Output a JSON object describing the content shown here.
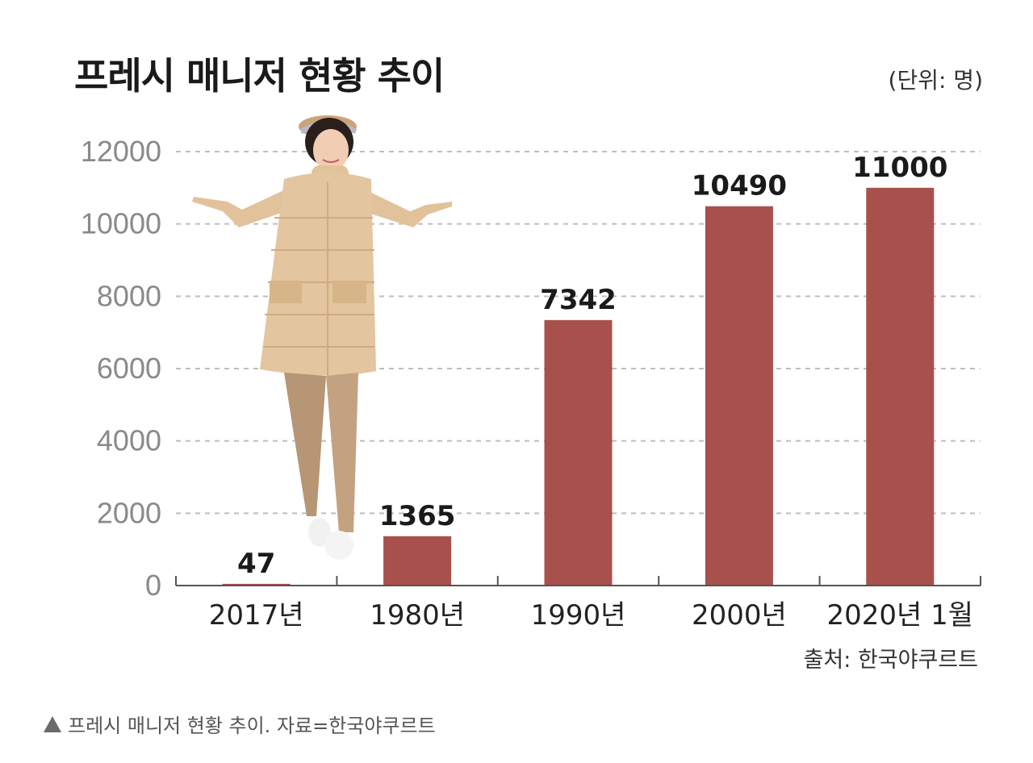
{
  "title": "프레시 매니저 현황 추이",
  "unit": "(단위: 명)",
  "source": "출처: 한국야쿠르트",
  "caption": "프레시 매니저 현황 추이. 자료=한국야쿠르트",
  "colors": {
    "bar": "#a8504c",
    "grid": "#bdbdbd",
    "axis": "#555555"
  },
  "chart_data": {
    "type": "bar",
    "title": "프레시 매니저 현황 추이",
    "categories": [
      "2017년",
      "1980년",
      "1990년",
      "2000년",
      "2020년 1월"
    ],
    "values": [
      47,
      1365,
      7342,
      10490,
      11000
    ],
    "data_labels": [
      "47",
      "1365",
      "7342",
      "10490",
      "11000"
    ],
    "yticks": [
      "0",
      "2000",
      "4000",
      "6000",
      "8000",
      "10000",
      "12000"
    ],
    "ylim": [
      0,
      12000
    ],
    "grid": true
  }
}
